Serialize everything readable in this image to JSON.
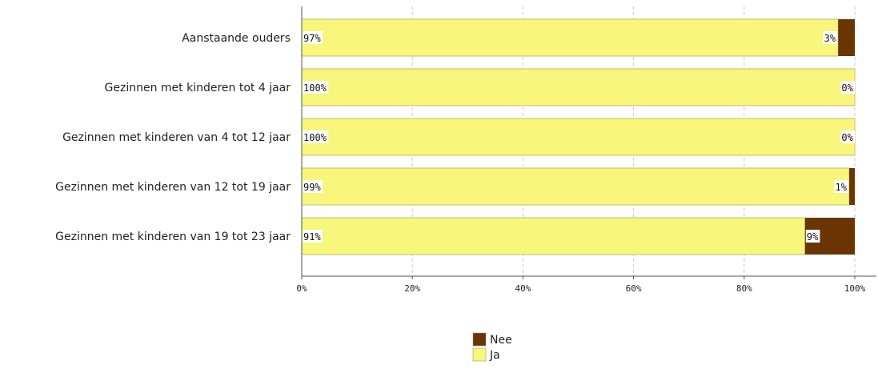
{
  "chart_data": {
    "type": "bar",
    "orientation": "horizontal",
    "stacked": true,
    "categories": [
      "Aanstaande ouders",
      "Gezinnen met kinderen tot 4 jaar",
      "Gezinnen met kinderen van 4 tot 12 jaar",
      "Gezinnen met kinderen van 12 tot 19 jaar",
      "Gezinnen met kinderen van 19 tot 23 jaar"
    ],
    "series": [
      {
        "name": "Ja",
        "values": [
          97,
          100,
          100,
          99,
          91
        ],
        "labels": [
          "97%",
          "100%",
          "100%",
          "99%",
          "91%"
        ],
        "color": "#f8f77b"
      },
      {
        "name": "Nee",
        "values": [
          3,
          0,
          0,
          1,
          9
        ],
        "labels": [
          "3%",
          "0%",
          "0%",
          "1%",
          "9%"
        ],
        "color": "#6b3503"
      }
    ],
    "xlim": [
      0,
      100
    ],
    "xticks": [
      "0%",
      "20%",
      "40%",
      "60%",
      "80%",
      "100%"
    ],
    "grid": "vertical-dashed",
    "legend": [
      "Nee",
      "Ja"
    ],
    "legend_position": "bottom"
  }
}
